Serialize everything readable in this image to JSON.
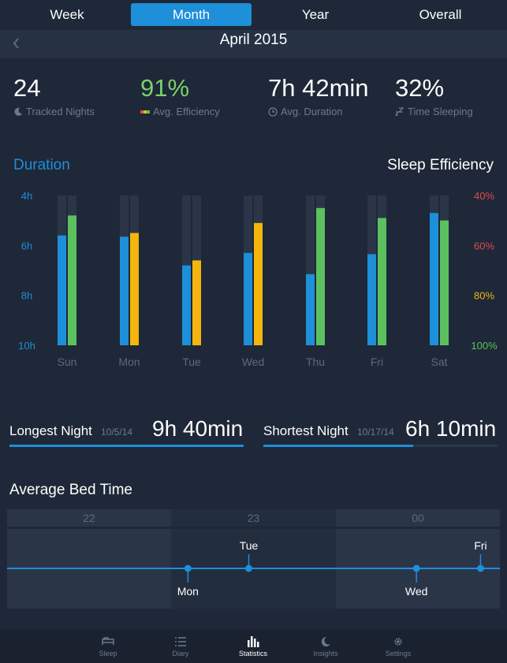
{
  "tabs": [
    {
      "label": "Week"
    },
    {
      "label": "Month",
      "active": true
    },
    {
      "label": "Year"
    },
    {
      "label": "Overall"
    }
  ],
  "period": {
    "title": "April 2015",
    "prev_icon": "chevron-left-icon"
  },
  "stats": [
    {
      "value": "24",
      "label": "Tracked Nights",
      "icon": "moon-icon"
    },
    {
      "value": "91%",
      "label": "Avg. Efficiency",
      "icon": "efficiency-bar-icon",
      "color": "#7bd16a"
    },
    {
      "value": "7h 42min",
      "label": "Avg. Duration",
      "icon": "clock-icon"
    },
    {
      "value": "32%",
      "label": "Time Sleeping",
      "icon": "zzz-icon"
    }
  ],
  "chart_labels": {
    "left": "Duration",
    "right": "Sleep Efficiency"
  },
  "chart_data": {
    "type": "bar",
    "categories": [
      "Sun",
      "Mon",
      "Tue",
      "Wed",
      "Thu",
      "Fri",
      "Sat"
    ],
    "left_axis": {
      "ticks": [
        "4h",
        "6h",
        "8h",
        "10h"
      ],
      "range_hours": [
        4,
        10
      ],
      "inverted": true
    },
    "right_axis": {
      "ticks": [
        "40%",
        "60%",
        "80%",
        "100%"
      ],
      "range_percent": [
        40,
        100
      ],
      "inverted": true
    },
    "series": [
      {
        "values_hours": [
          5.6,
          5.65,
          6.8,
          6.3,
          7.15,
          6.35,
          4.7
        ]
      },
      {
        "values_percent": [
          48,
          55,
          66,
          51,
          45,
          49,
          50
        ],
        "colors": [
          "#5bc15f",
          "#f5b50f",
          "#f5b50f",
          "#f5b50f",
          "#5bc15f",
          "#5bc15f",
          "#5bc15f"
        ]
      }
    ]
  },
  "nights": {
    "longest": {
      "label": "Longest Night",
      "date": "10/5/14",
      "value": "9h 40min",
      "fill": 1.0
    },
    "shortest": {
      "label": "Shortest Night",
      "date": "10/17/14",
      "value": "6h 10min",
      "fill": 0.64
    }
  },
  "bedtime": {
    "title": "Average Bed Time",
    "hours": [
      "22",
      "23",
      "00"
    ],
    "points": [
      {
        "day": "Mon",
        "hours": 22.6,
        "label_pos": "below"
      },
      {
        "day": "Tue",
        "hours": 22.97,
        "label_pos": "above"
      },
      {
        "day": "Wed",
        "hours": 23.99,
        "label_pos": "below"
      },
      {
        "day": "Fri",
        "hours": 24.38,
        "label_pos": "above"
      }
    ]
  },
  "tabbar": [
    {
      "label": "Sleep",
      "icon": "bed-icon"
    },
    {
      "label": "Diary",
      "icon": "list-icon"
    },
    {
      "label": "Statistics",
      "icon": "bar-chart-icon",
      "active": true
    },
    {
      "label": "Insights",
      "icon": "moon-icon"
    },
    {
      "label": "Settings",
      "icon": "gear-icon"
    }
  ],
  "colors": {
    "accent": "#1e8fd9",
    "green": "#5bc15f",
    "yellow": "#f5b50f",
    "red": "#e04b4b"
  }
}
